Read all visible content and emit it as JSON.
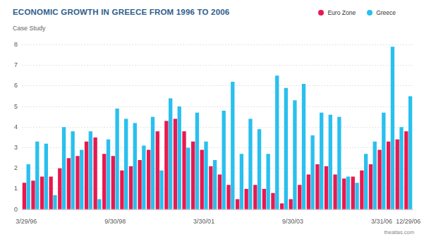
{
  "chart_data": {
    "type": "bar",
    "title": "ECONOMIC GROWTH IN GREECE FROM 1996 TO 2006",
    "subtitle": "Case Study",
    "source": "theatlas.com",
    "categories": [
      "3/29/96",
      null,
      null,
      null,
      null,
      null,
      null,
      null,
      null,
      null,
      "9/30/98",
      null,
      null,
      null,
      null,
      null,
      null,
      null,
      null,
      null,
      "3/30/01",
      null,
      null,
      null,
      null,
      null,
      null,
      null,
      null,
      null,
      "9/30/03",
      null,
      null,
      null,
      null,
      null,
      null,
      null,
      null,
      null,
      "3/31/06",
      null,
      null,
      "12/29/06"
    ],
    "series": [
      {
        "name": "Euro Zone",
        "color": "#e8194f",
        "values": [
          1.3,
          1.4,
          1.6,
          1.6,
          2.0,
          2.5,
          2.6,
          3.3,
          3.5,
          2.7,
          2.6,
          1.9,
          2.1,
          2.4,
          2.9,
          3.8,
          4.3,
          4.4,
          3.8,
          3.3,
          2.9,
          2.1,
          1.7,
          1.2,
          0.5,
          1.0,
          1.2,
          1.0,
          0.8,
          0.3,
          0.5,
          1.2,
          1.7,
          2.2,
          2.1,
          1.7,
          1.5,
          1.6,
          1.9,
          2.2,
          2.9,
          3.3,
          3.4,
          3.8
        ]
      },
      {
        "name": "Greece",
        "color": "#29c0ee",
        "values": [
          2.2,
          3.3,
          3.2,
          0.7,
          4.0,
          3.8,
          2.9,
          3.8,
          0.5,
          3.4,
          4.9,
          4.4,
          4.2,
          3.1,
          4.5,
          1.9,
          5.4,
          5.0,
          3.0,
          4.7,
          3.3,
          2.4,
          4.8,
          6.2,
          2.7,
          4.4,
          3.9,
          2.7,
          6.5,
          5.9,
          5.3,
          6.1,
          3.6,
          4.7,
          4.6,
          4.5,
          1.6,
          1.3,
          2.7,
          3.3,
          4.7,
          7.9,
          4.0,
          5.5
        ]
      }
    ],
    "ylim": [
      0,
      8
    ],
    "yticks": [
      0,
      1,
      2,
      3,
      4,
      5,
      6,
      7,
      8
    ],
    "grid": true,
    "legend": "top-right"
  }
}
